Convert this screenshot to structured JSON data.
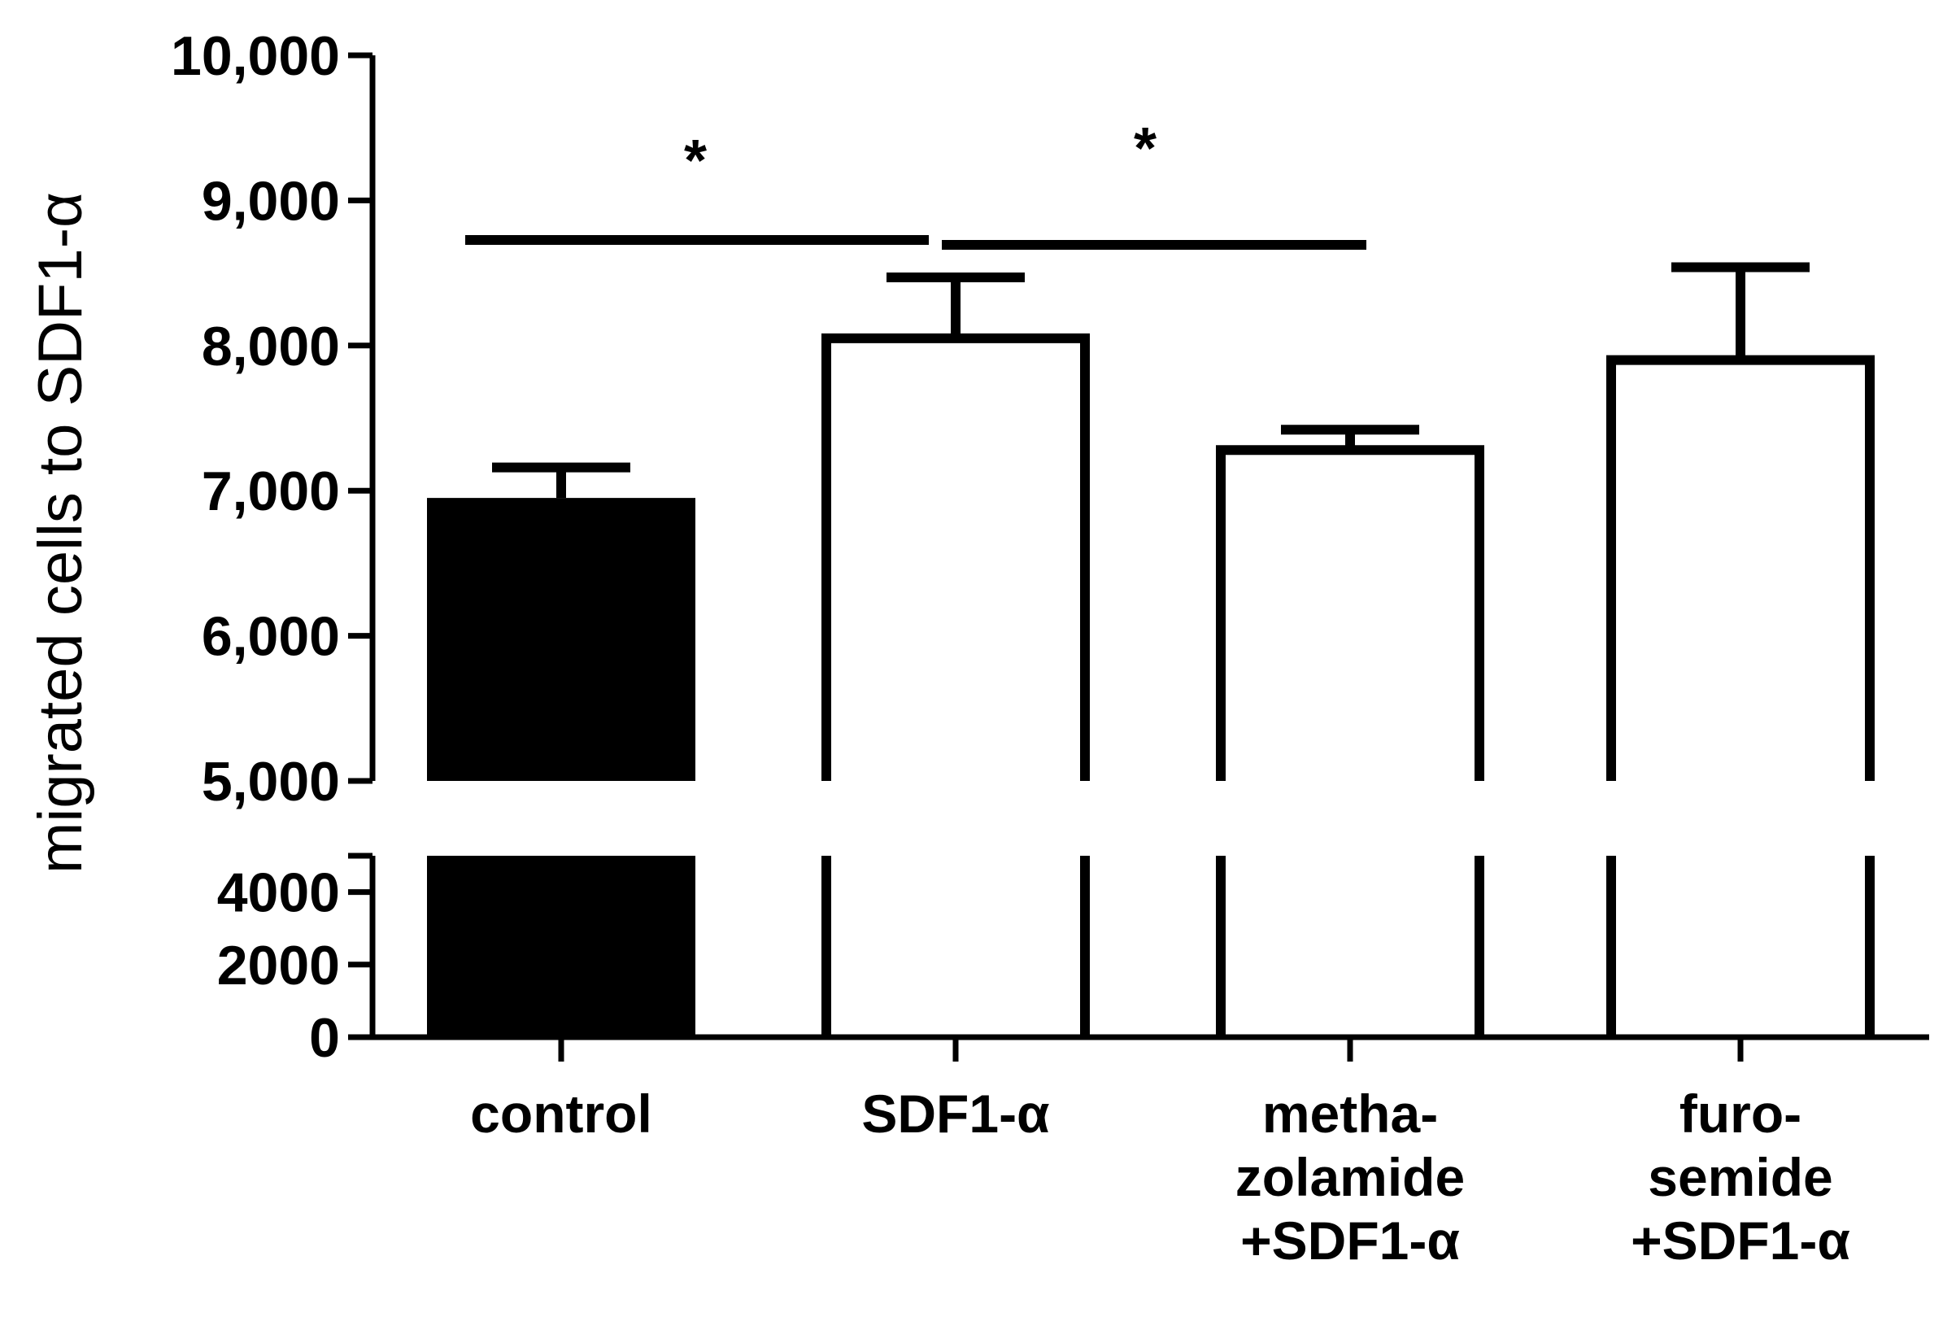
{
  "chart_data": {
    "type": "bar",
    "ylabel": "migrated cells to SDF1-α",
    "xlabel": "",
    "axis_break": {
      "lower": [
        0,
        5000
      ],
      "upper": [
        5000,
        10000
      ]
    },
    "yticks_lower": [
      {
        "value": 0,
        "label": "0"
      },
      {
        "value": 2000,
        "label": "2000"
      },
      {
        "value": 4000,
        "label": "4000"
      }
    ],
    "yticks_upper": [
      {
        "value": 5000,
        "label": "5,000"
      },
      {
        "value": 6000,
        "label": "6,000"
      },
      {
        "value": 7000,
        "label": "7,000"
      },
      {
        "value": 8000,
        "label": "8,000"
      },
      {
        "value": 9000,
        "label": "9,000"
      },
      {
        "value": 10000,
        "label": "10,000"
      }
    ],
    "categories": [
      {
        "lines": [
          "control"
        ]
      },
      {
        "lines": [
          "SDF1-α"
        ]
      },
      {
        "lines": [
          "metha-",
          "zolamide",
          "+SDF1-α"
        ]
      },
      {
        "lines": [
          "furo-",
          "semide",
          "+SDF1-α"
        ]
      }
    ],
    "values": [
      6950,
      8050,
      7280,
      7900
    ],
    "errors": [
      210,
      420,
      140,
      640
    ],
    "fills": [
      "#000000",
      "#ffffff",
      "#ffffff",
      "#ffffff"
    ],
    "significance": [
      {
        "from": 0,
        "to": 1,
        "label": "*"
      },
      {
        "from": 1,
        "to": 2,
        "label": "*"
      }
    ]
  }
}
